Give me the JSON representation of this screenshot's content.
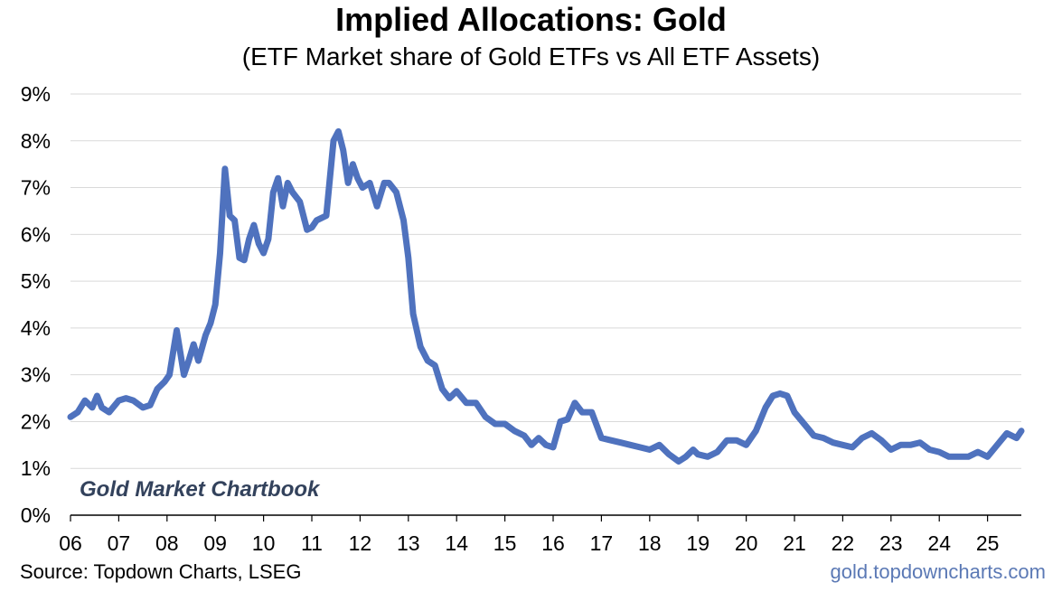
{
  "chart_data": {
    "type": "line",
    "title": "Implied Allocations: Gold",
    "subtitle": "(ETF Market share of Gold ETFs vs All ETF Assets)",
    "xlabel": "",
    "ylabel": "",
    "xlim": [
      2006.0,
      2025.7
    ],
    "ylim": [
      0,
      9
    ],
    "y_ticks": [
      "0%",
      "1%",
      "2%",
      "3%",
      "4%",
      "5%",
      "6%",
      "7%",
      "8%",
      "9%"
    ],
    "x_ticks": [
      "06",
      "07",
      "08",
      "09",
      "10",
      "11",
      "12",
      "13",
      "14",
      "15",
      "16",
      "17",
      "18",
      "19",
      "20",
      "21",
      "22",
      "23",
      "24",
      "25"
    ],
    "grid": true,
    "legend": "none",
    "series_color": "#4f72be",
    "series": [
      {
        "x": [
          2006.0,
          2006.15,
          2006.3,
          2006.45,
          2006.55,
          2006.65,
          2006.8,
          2007.0,
          2007.15,
          2007.3,
          2007.5,
          2007.65,
          2007.8,
          2007.95,
          2008.05,
          2008.2,
          2008.35,
          2008.45,
          2008.55,
          2008.65,
          2008.8,
          2008.9,
          2009.0,
          2009.1,
          2009.2,
          2009.3,
          2009.4,
          2009.5,
          2009.6,
          2009.7,
          2009.8,
          2009.9,
          2010.0,
          2010.1,
          2010.2,
          2010.3,
          2010.4,
          2010.5,
          2010.6,
          2010.75,
          2010.9,
          2011.0,
          2011.1,
          2011.3,
          2011.45,
          2011.55,
          2011.65,
          2011.75,
          2011.85,
          2011.95,
          2012.05,
          2012.2,
          2012.35,
          2012.5,
          2012.6,
          2012.75,
          2012.9,
          2013.0,
          2013.1,
          2013.25,
          2013.4,
          2013.55,
          2013.7,
          2013.85,
          2014.0,
          2014.2,
          2014.4,
          2014.6,
          2014.8,
          2015.0,
          2015.2,
          2015.4,
          2015.55,
          2015.7,
          2015.85,
          2016.0,
          2016.15,
          2016.3,
          2016.45,
          2016.6,
          2016.8,
          2017.0,
          2017.2,
          2017.4,
          2017.6,
          2017.8,
          2018.0,
          2018.2,
          2018.4,
          2018.6,
          2018.75,
          2018.9,
          2019.0,
          2019.2,
          2019.4,
          2019.6,
          2019.8,
          2020.0,
          2020.2,
          2020.4,
          2020.55,
          2020.7,
          2020.85,
          2021.0,
          2021.2,
          2021.4,
          2021.6,
          2021.8,
          2022.0,
          2022.2,
          2022.4,
          2022.6,
          2022.8,
          2023.0,
          2023.2,
          2023.4,
          2023.6,
          2023.8,
          2024.0,
          2024.2,
          2024.4,
          2024.6,
          2024.8,
          2025.0,
          2025.2,
          2025.4,
          2025.6,
          2025.7
        ],
        "values": [
          2.1,
          2.2,
          2.45,
          2.3,
          2.55,
          2.3,
          2.2,
          2.45,
          2.5,
          2.45,
          2.3,
          2.35,
          2.7,
          2.85,
          3.0,
          3.95,
          3.0,
          3.3,
          3.65,
          3.3,
          3.85,
          4.1,
          4.5,
          5.6,
          7.4,
          6.4,
          6.3,
          5.5,
          5.45,
          5.9,
          6.2,
          5.8,
          5.6,
          5.9,
          6.9,
          7.2,
          6.6,
          7.1,
          6.9,
          6.7,
          6.1,
          6.15,
          6.3,
          6.4,
          8.0,
          8.2,
          7.8,
          7.1,
          7.5,
          7.2,
          7.0,
          7.1,
          6.6,
          7.1,
          7.1,
          6.9,
          6.3,
          5.5,
          4.3,
          3.6,
          3.3,
          3.2,
          2.7,
          2.5,
          2.65,
          2.4,
          2.4,
          2.1,
          1.95,
          1.95,
          1.8,
          1.7,
          1.5,
          1.65,
          1.5,
          1.45,
          2.0,
          2.05,
          2.4,
          2.2,
          2.2,
          1.65,
          1.6,
          1.55,
          1.5,
          1.45,
          1.4,
          1.5,
          1.3,
          1.15,
          1.25,
          1.4,
          1.3,
          1.25,
          1.35,
          1.6,
          1.6,
          1.5,
          1.8,
          2.3,
          2.55,
          2.6,
          2.55,
          2.2,
          1.95,
          1.7,
          1.65,
          1.55,
          1.5,
          1.45,
          1.65,
          1.75,
          1.6,
          1.4,
          1.5,
          1.5,
          1.55,
          1.4,
          1.35,
          1.25,
          1.25,
          1.25,
          1.35,
          1.25,
          1.5,
          1.75,
          1.65,
          1.8
        ]
      }
    ],
    "watermark": "Gold Market Chartbook"
  },
  "footer": {
    "source": "Source: Topdown Charts, LSEG",
    "website": "gold.topdowncharts.com"
  }
}
